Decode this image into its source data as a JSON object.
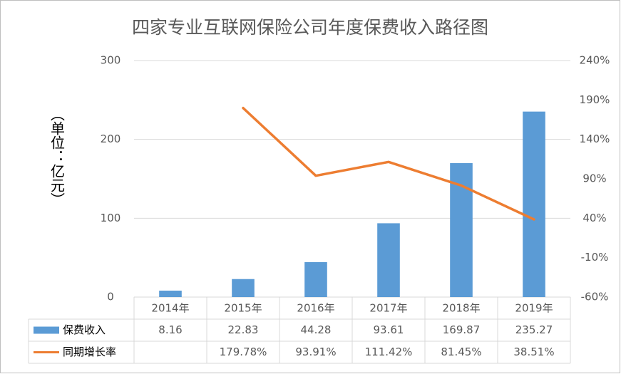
{
  "chart_data": {
    "type": "bar_line",
    "title": "四家专业互联网保险公司年度保费收入路径图",
    "y_label": "（单位：亿元）",
    "categories": [
      "2014年",
      "2015年",
      "2016年",
      "2017年",
      "2018年",
      "2019年"
    ],
    "series": [
      {
        "name": "保费收入",
        "color": "#5b9bd5",
        "type": "bar",
        "values": [
          8.16,
          22.83,
          44.28,
          93.61,
          169.87,
          235.27
        ]
      },
      {
        "name": "同期增长率",
        "color": "#ed7d31",
        "type": "line",
        "axis": "y2",
        "values": [
          null,
          179.78,
          93.91,
          111.42,
          81.45,
          38.51
        ],
        "value_labels": [
          null,
          "179.78%",
          "93.91%",
          "111.42%",
          "81.45%",
          "38.51%"
        ]
      }
    ],
    "ylim": [
      0,
      300
    ],
    "yticks": [
      0,
      100,
      200,
      300
    ],
    "y2lim": [
      -60,
      240
    ],
    "y2ticks": [
      {
        "value": -60,
        "label": "-60%"
      },
      {
        "value": -10,
        "label": "-10%"
      },
      {
        "value": 40,
        "label": "40%"
      },
      {
        "value": 90,
        "label": "90%"
      },
      {
        "value": 140,
        "label": "140%"
      },
      {
        "value": 190,
        "label": "190%"
      },
      {
        "value": 240,
        "label": "240%"
      }
    ],
    "grid": true,
    "data_table": true
  }
}
